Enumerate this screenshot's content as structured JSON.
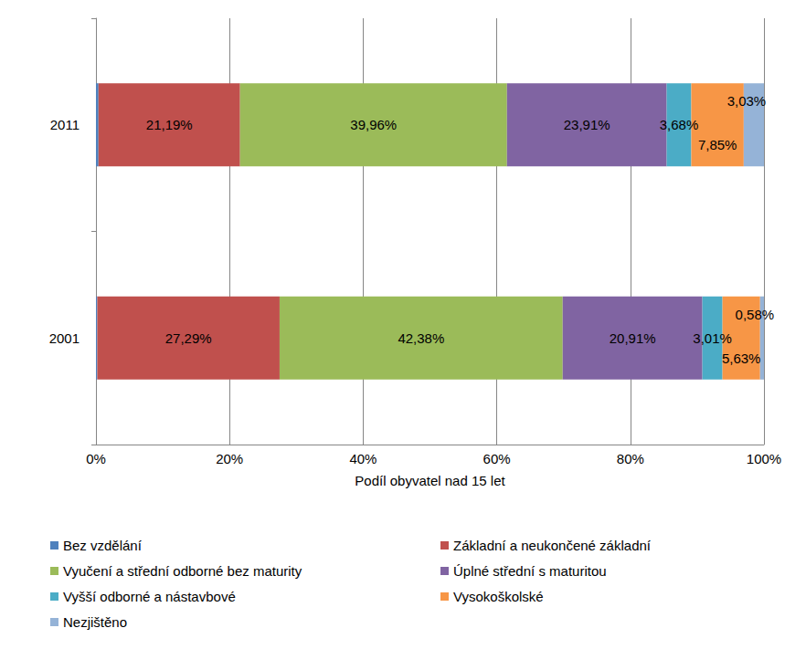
{
  "chart_data": {
    "type": "bar",
    "orientation": "horizontal",
    "stacked": true,
    "data_labels": true,
    "grid": true,
    "legend": "bottom",
    "xlabel": "Podíl obyvatel nad 15 let",
    "categories": [
      "2011",
      "2001"
    ],
    "xlim": [
      0,
      100
    ],
    "xticks": [
      {
        "value": 0,
        "label": "0%"
      },
      {
        "value": 20,
        "label": "20%"
      },
      {
        "value": 40,
        "label": "40%"
      },
      {
        "value": 60,
        "label": "60%"
      },
      {
        "value": 80,
        "label": "80%"
      },
      {
        "value": 100,
        "label": "100%"
      }
    ],
    "series": [
      {
        "name": "Bez vzdělání",
        "color": "#4f81bd",
        "values": [
          0.38,
          0.2
        ],
        "value_labels": [
          null,
          null
        ]
      },
      {
        "name": "Základní a neukončené základní",
        "color": "#c0504d",
        "values": [
          21.19,
          27.29
        ],
        "value_labels": [
          "21,19%",
          "27,29%"
        ]
      },
      {
        "name": "Vyučení a střední odborné bez maturity",
        "color": "#9bbb59",
        "values": [
          39.96,
          42.38
        ],
        "value_labels": [
          "39,96%",
          "42,38%"
        ]
      },
      {
        "name": "Úplné střední s maturitou",
        "color": "#8064a2",
        "values": [
          23.91,
          20.91
        ],
        "value_labels": [
          "23,91%",
          "20,91%"
        ]
      },
      {
        "name": "Vyšší odborné a nástavbové",
        "color": "#4bacc6",
        "values": [
          3.68,
          3.01
        ],
        "value_labels": [
          "3,68%",
          "3,01%"
        ]
      },
      {
        "name": "Vysokoškolské",
        "color": "#f79646",
        "values": [
          7.85,
          5.63
        ],
        "value_labels": [
          "7,85%",
          "5,63%"
        ]
      },
      {
        "name": "Nezjištěno",
        "color": "#95b3d7",
        "values": [
          3.03,
          0.58
        ],
        "value_labels": [
          "3,03%",
          "0,58%"
        ]
      }
    ]
  }
}
